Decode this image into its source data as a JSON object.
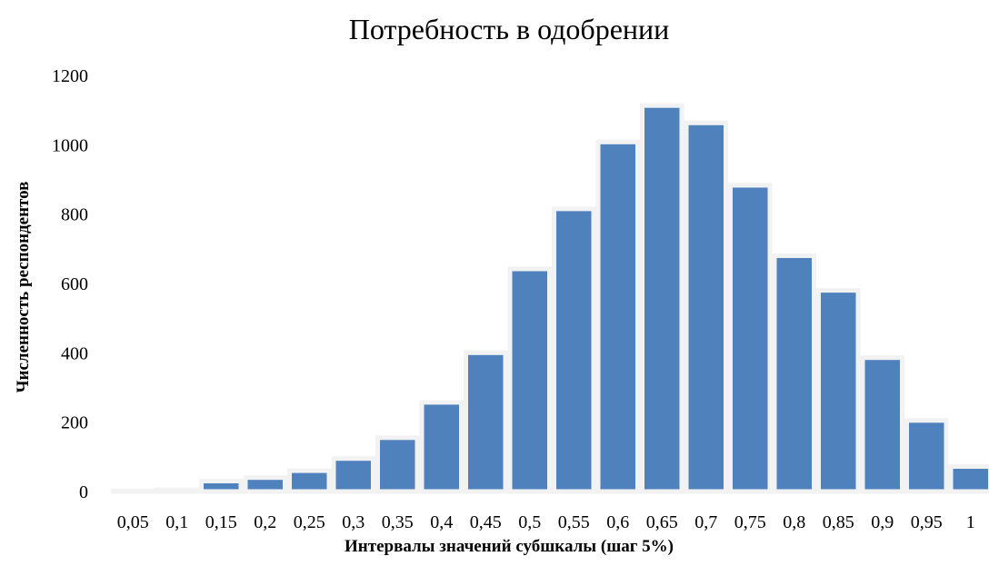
{
  "chart_data": {
    "type": "bar",
    "title": "Потребность в одобрении",
    "xlabel": "Интервалы значений субшкалы (шаг 5%)",
    "ylabel": "Численность респондентов",
    "categories": [
      "0,05",
      "0,1",
      "0,15",
      "0,2",
      "0,25",
      "0,3",
      "0,35",
      "0,4",
      "0,45",
      "0,5",
      "0,55",
      "0,6",
      "0,65",
      "0,7",
      "0,75",
      "0,8",
      "0,85",
      "0,9",
      "0,95",
      "1"
    ],
    "values": [
      2,
      5,
      30,
      40,
      60,
      95,
      155,
      257,
      400,
      642,
      815,
      1008,
      1113,
      1063,
      883,
      680,
      580,
      386,
      205,
      72
    ],
    "ylim": [
      0,
      1200
    ],
    "yticks": [
      0,
      200,
      400,
      600,
      800,
      1000,
      1200
    ],
    "grid": false,
    "legend": "none",
    "colors": {
      "bar": "#4f81bd",
      "bar_outline": "#f2f2f2"
    }
  }
}
